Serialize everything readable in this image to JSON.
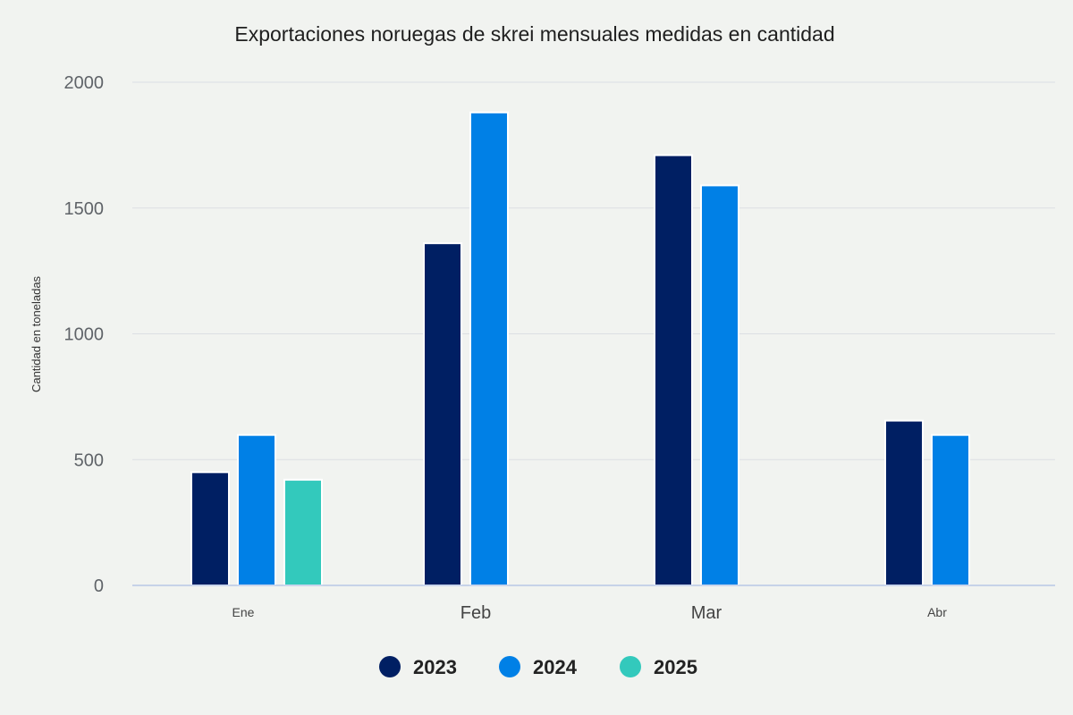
{
  "chart_data": {
    "type": "bar",
    "title": "Exportaciones noruegas de skrei mensuales medidas en cantidad",
    "xlabel": "",
    "ylabel": "Cantidad en toneladas",
    "ylim": [
      0,
      2000
    ],
    "yticks": [
      0,
      500,
      1000,
      1500,
      2000
    ],
    "grid": true,
    "legend_position": "bottom",
    "categories": [
      "Ene",
      "Feb",
      "Mar",
      "Abr"
    ],
    "series": [
      {
        "name": "2023",
        "color": "#001f63",
        "values": [
          450,
          1360,
          1710,
          655
        ]
      },
      {
        "name": "2024",
        "color": "#0080e6",
        "values": [
          598,
          1880,
          1590,
          598
        ]
      },
      {
        "name": "2025",
        "color": "#33c9bc",
        "values": [
          420,
          null,
          null,
          null
        ]
      }
    ]
  }
}
